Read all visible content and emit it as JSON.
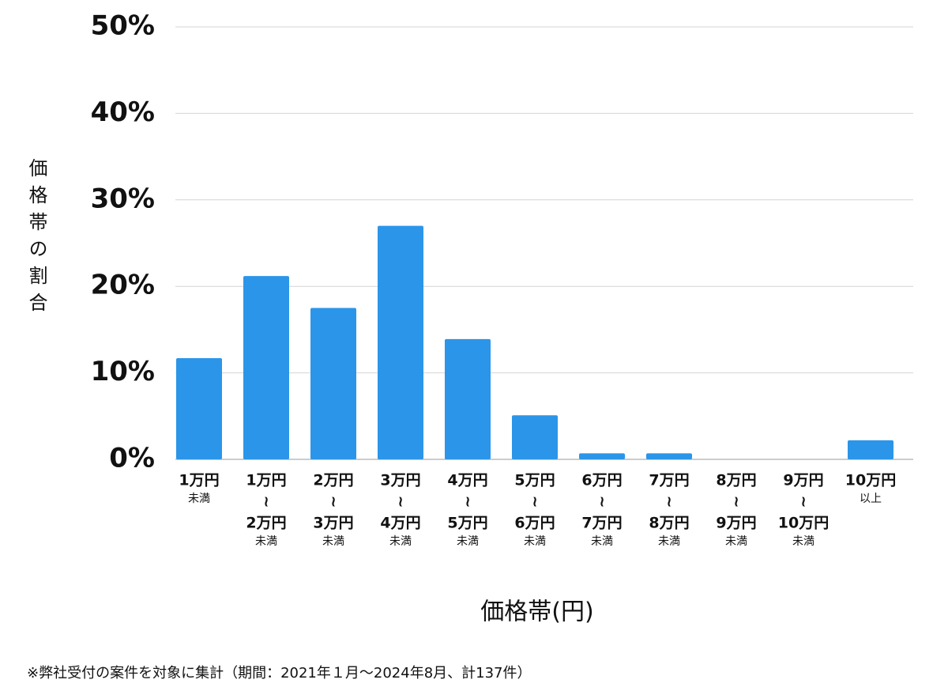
{
  "chart_data": {
    "type": "bar",
    "categories": [
      [
        "1万円",
        "未満"
      ],
      [
        "1万円",
        "≀",
        "2万円",
        "未満"
      ],
      [
        "2万円",
        "≀",
        "3万円",
        "未満"
      ],
      [
        "3万円",
        "≀",
        "4万円",
        "未満"
      ],
      [
        "4万円",
        "≀",
        "5万円",
        "未満"
      ],
      [
        "5万円",
        "≀",
        "6万円",
        "未満"
      ],
      [
        "6万円",
        "≀",
        "7万円",
        "未満"
      ],
      [
        "7万円",
        "≀",
        "8万円",
        "未満"
      ],
      [
        "8万円",
        "≀",
        "9万円",
        "未満"
      ],
      [
        "9万円",
        "≀",
        "10万円",
        "未満"
      ],
      [
        "10万円",
        "以上"
      ]
    ],
    "values": [
      11.7,
      21.2,
      17.5,
      27.0,
      13.9,
      5.1,
      0.7,
      0.7,
      0,
      0,
      2.2
    ],
    "color": "#2b95e9",
    "ylim": [
      0,
      50
    ],
    "yticks": [
      {
        "value": 0,
        "label": "0%"
      },
      {
        "value": 10,
        "label": "10%"
      },
      {
        "value": 20,
        "label": "20%"
      },
      {
        "value": 30,
        "label": "30%"
      },
      {
        "value": 40,
        "label": "40%"
      },
      {
        "value": 50,
        "label": "50%"
      }
    ],
    "grid": true,
    "x_label": "価格帯(円)",
    "y_label": "価格帯の割合",
    "note": "※弊社受付の案件を対象に集計（期間：2021年１月～2024年8月、計137件）"
  }
}
